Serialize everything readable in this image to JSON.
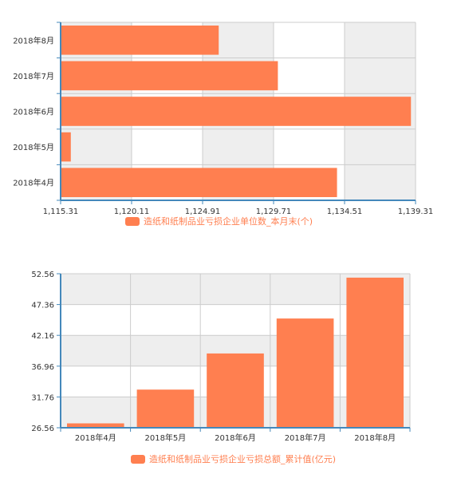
{
  "colors": {
    "bar": "#ff7f50",
    "axis": "#48b",
    "grid": "#cccccc",
    "band": "#eeeeee"
  },
  "chart_data": [
    {
      "type": "bar",
      "orientation": "horizontal",
      "categories": [
        "2018年8月",
        "2018年7月",
        "2018年6月",
        "2018年5月",
        "2018年4月"
      ],
      "series": [
        {
          "name": "造纸和纸制品业亏损企业单位数_本月末(个)",
          "values": [
            1126,
            1130,
            1139,
            1116,
            1134
          ]
        }
      ],
      "x_ticks": [
        "1,115.31",
        "1,120.11",
        "1,124.91",
        "1,129.71",
        "1,134.51",
        "1,139.31"
      ],
      "xlim": [
        1115.31,
        1139.31
      ],
      "grid": true,
      "legend_position": "bottom-center"
    },
    {
      "type": "bar",
      "orientation": "vertical",
      "categories": [
        "2018年4月",
        "2018年5月",
        "2018年6月",
        "2018年7月",
        "2018年8月"
      ],
      "series": [
        {
          "name": "造纸和纸制品业亏损企业亏损总额_累计值(亿元)",
          "values": [
            27.3,
            33.0,
            39.1,
            45.0,
            51.9
          ]
        }
      ],
      "y_ticks": [
        "52.56",
        "47.36",
        "42.16",
        "36.96",
        "31.76",
        "26.56"
      ],
      "ylim": [
        26.56,
        52.56
      ],
      "grid": true,
      "legend_position": "bottom-center"
    }
  ]
}
